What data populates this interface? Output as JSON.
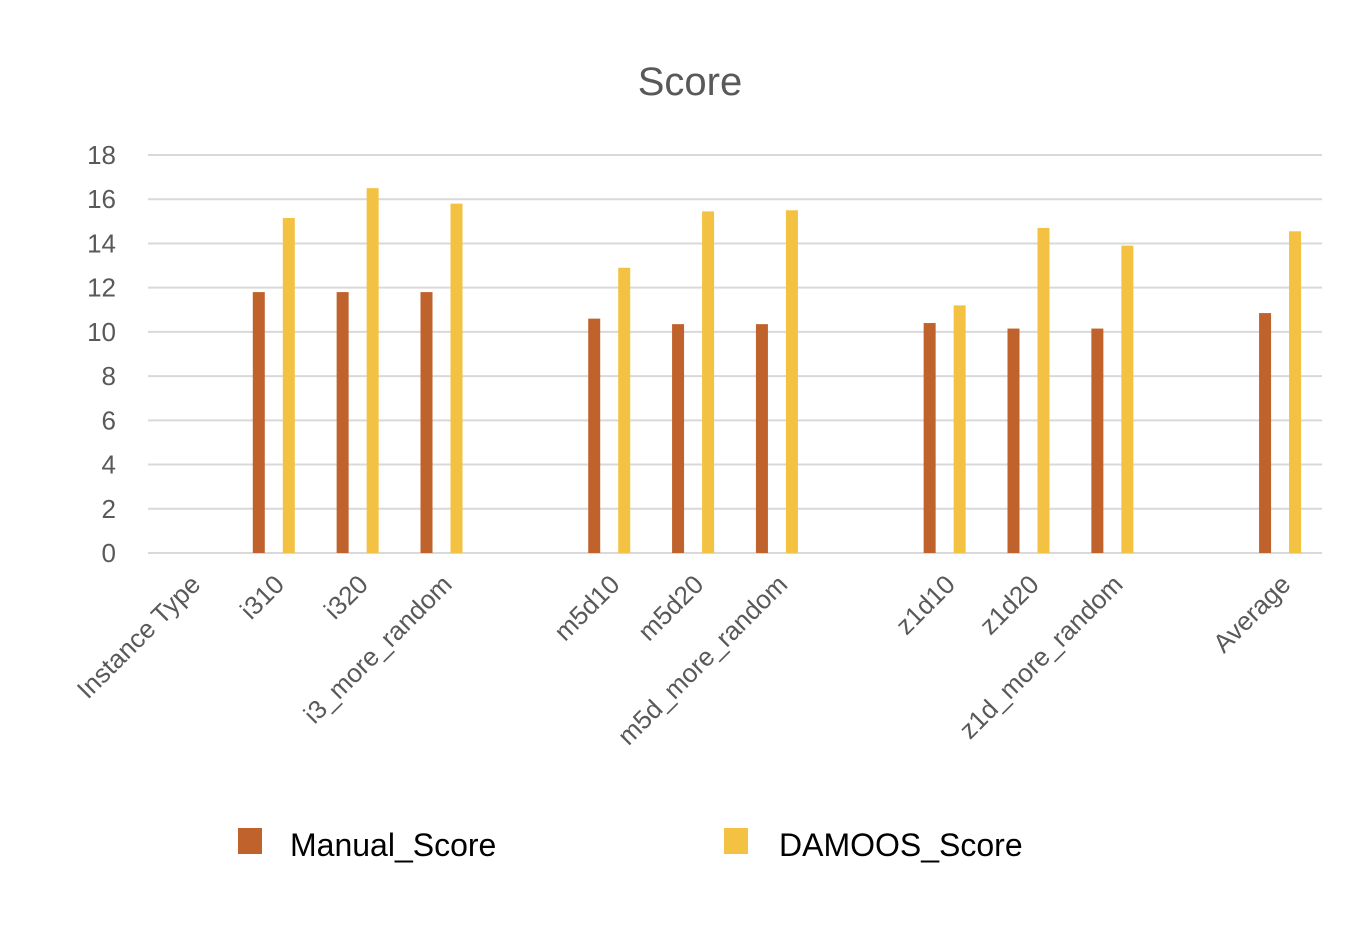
{
  "chart_data": {
    "type": "bar",
    "title": "Score",
    "xlabel": "",
    "ylabel": "",
    "ylim": [
      0,
      18
    ],
    "yticks": [
      "0",
      "2",
      "4",
      "6",
      "8",
      "10",
      "12",
      "14",
      "16",
      "18"
    ],
    "grid": true,
    "legend_position": "bottom",
    "categories": [
      "Instance Type",
      "i310",
      "i320",
      "i3_more_random",
      "",
      "m5d10",
      "m5d20",
      "m5d_more_random",
      "",
      "z1d10",
      "z1d20",
      "z1d_more_random",
      "",
      "Average"
    ],
    "series": [
      {
        "name": "Manual_Score",
        "color": "#c0622b",
        "values": [
          null,
          11.8,
          11.8,
          11.8,
          null,
          10.6,
          10.35,
          10.35,
          null,
          10.4,
          10.15,
          10.15,
          null,
          10.85
        ]
      },
      {
        "name": "DAMOOS_Score",
        "color": "#f4c242",
        "values": [
          null,
          15.15,
          16.5,
          15.8,
          null,
          12.9,
          15.45,
          15.5,
          null,
          11.2,
          14.7,
          13.9,
          null,
          14.55
        ]
      }
    ]
  }
}
